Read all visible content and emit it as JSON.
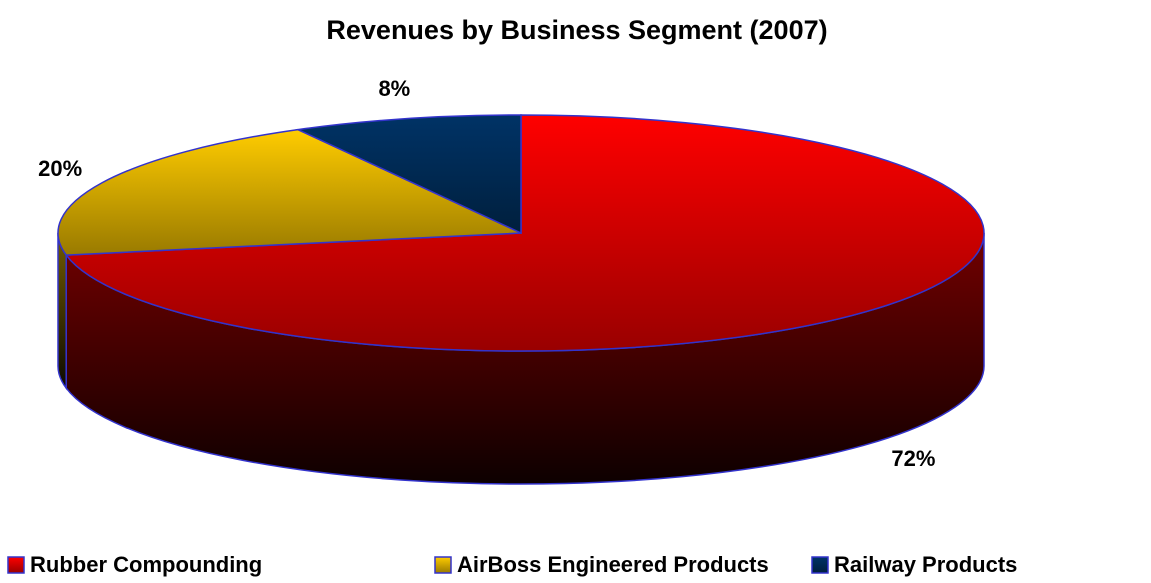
{
  "chart_data": {
    "type": "pie",
    "title": "Revenues by Business Segment (2007)",
    "categories": [
      "Rubber Compounding",
      "AirBoss Engineered Products",
      "Railway Products"
    ],
    "values": [
      72,
      20,
      8
    ],
    "value_labels": [
      "72%",
      "20%",
      "8%"
    ],
    "colors": [
      "#ff0000",
      "#ffcc00",
      "#003366"
    ],
    "legend": "bottom"
  }
}
